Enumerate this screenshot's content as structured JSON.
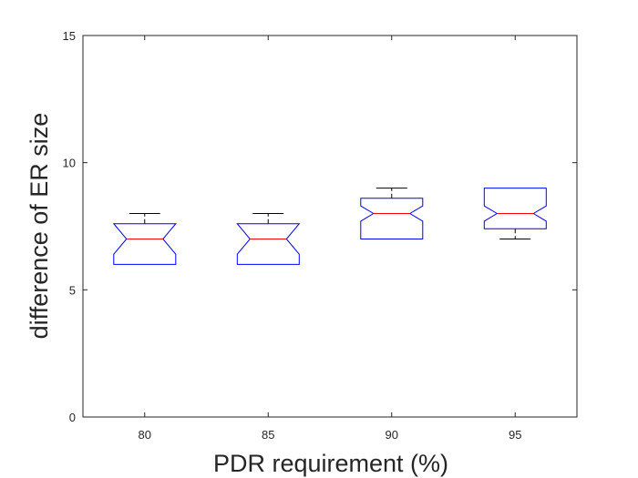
{
  "chart_data": {
    "type": "box",
    "xlabel": "PDR requirement (%)",
    "ylabel": "difference of ER size",
    "ylim": [
      0,
      15
    ],
    "yticks": [
      0,
      5,
      10,
      15
    ],
    "notched": true,
    "grid": false,
    "categories": [
      "80",
      "85",
      "90",
      "95"
    ],
    "boxes": [
      {
        "category": "80",
        "whisker_low": 6,
        "q1": 6,
        "notch_low": 6.4,
        "median": 7,
        "notch_high": 7.6,
        "q3": 7.6,
        "whisker_high": 8
      },
      {
        "category": "85",
        "whisker_low": 6,
        "q1": 6,
        "notch_low": 6.4,
        "median": 7,
        "notch_high": 7.6,
        "q3": 7.6,
        "whisker_high": 8
      },
      {
        "category": "90",
        "whisker_low": 7,
        "q1": 7,
        "notch_low": 7.7,
        "median": 8,
        "notch_high": 8.3,
        "q3": 8.6,
        "whisker_high": 9
      },
      {
        "category": "95",
        "whisker_low": 7,
        "q1": 7.4,
        "notch_low": 7.7,
        "median": 8,
        "notch_high": 8.3,
        "q3": 9,
        "whisker_high": 9
      }
    ],
    "colors": {
      "box": "#0000ff",
      "median": "#ff0000",
      "whisker": "#000000",
      "axis": "#262626"
    }
  }
}
